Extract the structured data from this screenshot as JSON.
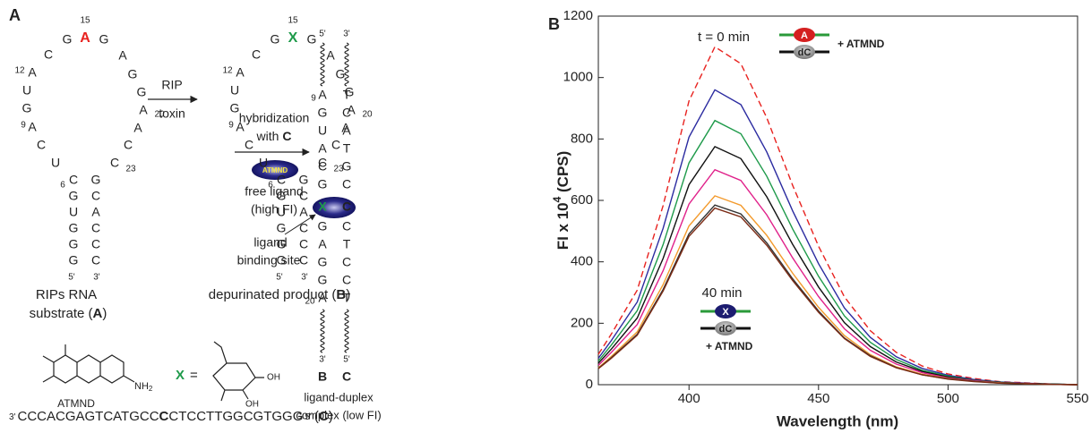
{
  "panel_a": {
    "label": "A",
    "substrate": {
      "nucleotides": [
        "G",
        "G",
        "G",
        "U",
        "G",
        "C",
        "U",
        "C",
        "A",
        "G",
        "U",
        "A",
        "C",
        "G",
        "A",
        "G",
        "A",
        "G",
        "G",
        "A",
        "A",
        "C",
        "C",
        "G",
        "C",
        "A",
        "C",
        "C",
        "C"
      ],
      "numbers": [
        "6",
        "9",
        "12",
        "15",
        "20",
        "23"
      ],
      "ends": [
        "5'",
        "3'"
      ],
      "highlight_color": "#e8221f",
      "caption": [
        "RIPs RNA",
        "substrate (",
        "A",
        ")"
      ]
    },
    "product": {
      "nucleotides": [
        "G",
        "G",
        "G",
        "U",
        "G",
        "C",
        "U",
        "C",
        "A",
        "G",
        "U",
        "A",
        "C",
        "G",
        "X",
        "G",
        "A",
        "G",
        "G",
        "A",
        "A",
        "C",
        "C",
        "G",
        "C",
        "A",
        "C",
        "C",
        "C"
      ],
      "numbers": [
        "6",
        "9",
        "12",
        "15",
        "20",
        "23"
      ],
      "ends": [
        "5'",
        "3'"
      ],
      "highlight_color": "#1e9a4a",
      "caption": [
        "depurinated product (",
        "B",
        ")"
      ]
    },
    "step1": [
      "RIP",
      "toxin"
    ],
    "step2": [
      "hybridization",
      "with ",
      "C",
      "ATMND",
      "free ligand",
      "(high FI)"
    ],
    "site": [
      "ligand",
      "binding site"
    ],
    "duplex": {
      "strand_b": [
        "A",
        "G",
        "U",
        "A",
        "C",
        "G",
        "X",
        "G",
        "A",
        "G",
        "G",
        "A"
      ],
      "strand_c": [
        "T",
        "C",
        "A",
        "T",
        "G",
        "C",
        "C",
        "C",
        "T",
        "C",
        "C",
        "T"
      ],
      "numbers": [
        "9",
        "20"
      ],
      "top_ends": [
        "5'",
        "3'"
      ],
      "bottom_ends": [
        "3'",
        "5'"
      ],
      "strand_labels": [
        "B",
        "C"
      ],
      "caption": [
        "ligand-duplex",
        "complex (low FI)"
      ]
    },
    "ligand": {
      "name": "ATMND",
      "amine": [
        "NH",
        "2"
      ]
    },
    "sugar": {
      "symbol": "X",
      "equals": "=",
      "hydroxyls": [
        "OH",
        "OH"
      ]
    },
    "sequence": [
      "3'",
      "CCCACGAGTCATGCC",
      "C",
      "CTCCTTGGCGTGGG",
      "5'",
      "(",
      "C",
      ")"
    ]
  },
  "chart_data": {
    "type": "line",
    "panel_label": "B",
    "x_label": "Wavelength (nm)",
    "y_label": [
      "FI x 10",
      "4",
      " (CPS)"
    ],
    "x": [
      365,
      370,
      380,
      390,
      400,
      410,
      420,
      430,
      440,
      450,
      460,
      470,
      480,
      490,
      500,
      510,
      520,
      530,
      540,
      550
    ],
    "xlim": [
      365,
      550
    ],
    "xticks": [
      400,
      450,
      500,
      550
    ],
    "ylim": [
      0,
      1200
    ],
    "yticks": [
      0,
      200,
      400,
      600,
      800,
      1000,
      1200
    ],
    "grid": false,
    "series": [
      {
        "color": "#e8221f",
        "dashed": true,
        "values": [
          99,
          165,
          308,
          583,
          924,
          1100,
          1045,
          869,
          649,
          451,
          286,
          176,
          105,
          61,
          35,
          20,
          10,
          6,
          2,
          0
        ]
      },
      {
        "color": "#2b2ba0",
        "values": [
          86,
          144,
          269,
          509,
          806,
          960,
          912,
          758,
          566,
          394,
          250,
          154,
          91,
          53,
          31,
          17,
          9,
          5,
          2,
          0
        ]
      },
      {
        "color": "#1e9a4a",
        "values": [
          77,
          129,
          241,
          456,
          722,
          860,
          817,
          679,
          507,
          353,
          224,
          138,
          82,
          47,
          28,
          15,
          8,
          4,
          2,
          0
        ]
      },
      {
        "color": "#111111",
        "values": [
          70,
          116,
          217,
          411,
          651,
          775,
          736,
          612,
          457,
          318,
          202,
          124,
          74,
          43,
          25,
          14,
          7,
          4,
          2,
          0
        ]
      },
      {
        "color": "#e0218a",
        "values": [
          63,
          105,
          196,
          371,
          588,
          700,
          665,
          553,
          413,
          287,
          182,
          112,
          67,
          39,
          22,
          13,
          6,
          4,
          1,
          0
        ]
      },
      {
        "color": "#f39a2c",
        "values": [
          55,
          92,
          172,
          326,
          517,
          615,
          584,
          486,
          363,
          252,
          160,
          98,
          58,
          34,
          20,
          11,
          6,
          3,
          1,
          0
        ]
      },
      {
        "color": "#333333",
        "values": [
          53,
          88,
          164,
          310,
          491,
          585,
          556,
          462,
          345,
          240,
          152,
          94,
          56,
          32,
          19,
          11,
          5,
          3,
          1,
          0
        ]
      },
      {
        "color": "#7a2a14",
        "values": [
          52,
          86,
          161,
          305,
          483,
          575,
          546,
          454,
          339,
          236,
          150,
          92,
          55,
          32,
          18,
          10,
          5,
          3,
          1,
          0
        ]
      }
    ],
    "annotations": {
      "start": "t = 0 min",
      "end": "40 min",
      "start_icon": [
        "A",
        "dC",
        "+ ATMND"
      ],
      "end_icon": [
        "X",
        "dC",
        "+ ATMND"
      ]
    }
  }
}
